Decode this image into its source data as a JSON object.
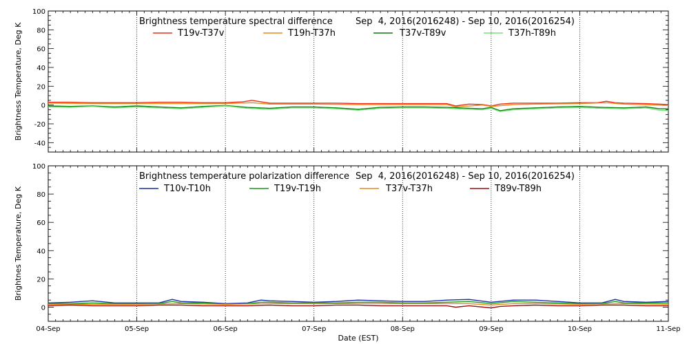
{
  "chart_data": [
    {
      "type": "line",
      "title_left": "Brightness temperature spectral difference",
      "title_right": "Sep  4, 2016(2016248) - Sep 10, 2016(2016254)",
      "ylabel": "Brightness Temperature, Deg K",
      "ylim": [
        -50,
        100
      ],
      "yticks": [
        -40,
        -20,
        0,
        20,
        40,
        60,
        80,
        100
      ],
      "xlim": [
        0,
        7
      ],
      "x_unit": "days since 04-Sep",
      "grid": "vertical dotted at day boundaries",
      "series": [
        {
          "name": "T19v-T37v",
          "color": "#e8301c",
          "x": [
            0,
            0.25,
            0.5,
            0.75,
            1,
            1.25,
            1.5,
            1.75,
            2,
            2.1,
            2.2,
            2.3,
            2.4,
            2.5,
            2.75,
            3,
            3.25,
            3.5,
            3.75,
            4,
            4.25,
            4.5,
            4.6,
            4.75,
            4.9,
            5,
            5.1,
            5.25,
            5.5,
            5.75,
            6,
            6.2,
            6.3,
            6.4,
            6.5,
            6.75,
            7
          ],
          "values": [
            3,
            3,
            2.5,
            2.5,
            2.5,
            3,
            3,
            2.5,
            2.5,
            3,
            3.5,
            5,
            3.5,
            2,
            2,
            2,
            2,
            1.5,
            1.5,
            1.5,
            1.5,
            1.5,
            -1,
            1,
            0.5,
            -1,
            1,
            2,
            2,
            2,
            2.5,
            2.5,
            4,
            2.5,
            2,
            1.5,
            0.5
          ]
        },
        {
          "name": "T19h-T37h",
          "color": "#e88a1c",
          "x": [
            0,
            0.5,
            1,
            1.5,
            2,
            2.3,
            2.5,
            3,
            3.5,
            4,
            4.5,
            4.6,
            4.9,
            5,
            5.25,
            5.5,
            6,
            6.3,
            6.5,
            7
          ],
          "values": [
            2,
            1.5,
            1.5,
            1.5,
            1.5,
            2.5,
            1,
            1,
            0.5,
            0.5,
            0.5,
            -2,
            0,
            -1.5,
            0.5,
            1,
            1.5,
            2.5,
            1,
            -0.5
          ]
        },
        {
          "name": "T37v-T89v",
          "color": "#0a7a0a",
          "x": [
            0,
            0.25,
            0.5,
            0.75,
            1,
            1.25,
            1.5,
            1.75,
            2,
            2.25,
            2.5,
            2.75,
            3,
            3.25,
            3.5,
            3.75,
            4,
            4.25,
            4.5,
            4.75,
            4.9,
            5,
            5.1,
            5.25,
            5.5,
            5.75,
            6,
            6.25,
            6.5,
            6.75,
            6.9,
            7
          ],
          "values": [
            -1,
            -1.5,
            -1,
            -2,
            -1,
            -2,
            -3,
            -1.5,
            -0.5,
            -2.5,
            -3.5,
            -2,
            -2,
            -3,
            -4.5,
            -2.5,
            -2,
            -2,
            -2.5,
            -3.5,
            -4,
            -2.5,
            -6,
            -4,
            -3,
            -2,
            -1.5,
            -2.5,
            -3,
            -2,
            -4,
            -4
          ]
        },
        {
          "name": "T37h-T89h",
          "color": "#76e07a",
          "x": [
            0,
            0.25,
            0.5,
            0.75,
            1,
            1.25,
            1.5,
            1.75,
            2,
            2.25,
            2.5,
            2.75,
            3,
            3.25,
            3.5,
            3.75,
            4,
            4.25,
            4.5,
            4.75,
            4.9,
            5,
            5.1,
            5.25,
            5.5,
            5.75,
            6,
            6.25,
            6.5,
            6.75,
            6.9,
            7
          ],
          "values": [
            -2,
            -2.5,
            -1.5,
            -3,
            -2,
            -3,
            -4,
            -2.5,
            -1,
            -3.5,
            -4.5,
            -3,
            -3,
            -4,
            -5.5,
            -3.5,
            -3,
            -3,
            -3.5,
            -4.5,
            -5,
            -3.5,
            -7,
            -5,
            -4,
            -3,
            -2.5,
            -3.5,
            -4,
            -3,
            -5.5,
            -6
          ]
        }
      ]
    },
    {
      "type": "line",
      "title_left": "Brightness temperature polarization difference",
      "title_right": "Sep  4, 2016(2016248) - Sep 10, 2016(2016254)",
      "ylabel": "Brightnes Temperature, Deg K",
      "xlabel": "Date (EST)",
      "ylim": [
        -10,
        100
      ],
      "yticks": [
        0,
        20,
        40,
        60,
        80,
        100
      ],
      "xlim": [
        0,
        7
      ],
      "xticks": [
        "04-Sep",
        "05-Sep",
        "06-Sep",
        "07-Sep",
        "08-Sep",
        "09-Sep",
        "10-Sep",
        "11-Sep"
      ],
      "grid": "vertical dotted at day boundaries",
      "series": [
        {
          "name": "T10v-T10h",
          "color": "#1c2aa8",
          "x": [
            0,
            0.25,
            0.5,
            0.75,
            1,
            1.25,
            1.4,
            1.5,
            1.75,
            2,
            2.25,
            2.4,
            2.5,
            2.75,
            3,
            3.25,
            3.5,
            3.75,
            4,
            4.25,
            4.5,
            4.75,
            5,
            5.25,
            5.5,
            5.75,
            6,
            6.25,
            6.4,
            6.5,
            6.75,
            7
          ],
          "values": [
            3,
            3.5,
            4.5,
            3,
            3,
            3,
            5.5,
            4,
            3.5,
            2.5,
            3,
            5,
            4.5,
            4,
            3.5,
            4,
            5,
            4.5,
            4,
            4,
            5,
            5.5,
            3.5,
            5,
            5,
            4,
            3,
            3,
            5.5,
            4,
            3.5,
            4
          ]
        },
        {
          "name": "T19v-T19h",
          "color": "#1a9a1a",
          "x": [
            0,
            0.25,
            0.5,
            0.75,
            1,
            1.25,
            1.4,
            1.5,
            1.75,
            2,
            2.25,
            2.4,
            2.5,
            2.75,
            3,
            3.25,
            3.5,
            3.75,
            4,
            4.25,
            4.5,
            4.75,
            5,
            5.25,
            5.5,
            5.75,
            6,
            6.25,
            6.4,
            6.5,
            6.75,
            7
          ],
          "values": [
            2.5,
            2.5,
            3,
            2.5,
            2.5,
            2.5,
            4,
            3,
            3,
            2,
            2.5,
            3.5,
            3.5,
            3,
            3,
            3,
            3.5,
            3.5,
            3,
            3,
            3.5,
            4,
            2.5,
            4,
            3.5,
            3,
            2.5,
            2.5,
            4,
            3,
            3,
            3
          ]
        },
        {
          "name": "T37v-T37h",
          "color": "#e88a1c",
          "x": [
            0,
            0.5,
            1,
            1.5,
            2,
            2.5,
            3,
            3.5,
            4,
            4.5,
            4.75,
            5,
            5.25,
            5.5,
            6,
            6.5,
            7
          ],
          "values": [
            2,
            2,
            2,
            2.5,
            2,
            2.5,
            2.5,
            2.5,
            2.5,
            2.5,
            2.5,
            1.5,
            2.5,
            2.5,
            2,
            2.5,
            2
          ]
        },
        {
          "name": "T89v-T89h",
          "color": "#a01010",
          "x": [
            0,
            0.25,
            0.5,
            0.75,
            1,
            1.25,
            1.5,
            1.75,
            2,
            2.25,
            2.5,
            2.75,
            3,
            3.25,
            3.5,
            3.75,
            4,
            4.25,
            4.5,
            4.6,
            4.75,
            5,
            5.1,
            5.25,
            5.5,
            5.75,
            6,
            6.25,
            6.5,
            6.75,
            7
          ],
          "values": [
            1,
            1.5,
            1,
            1,
            1,
            1.5,
            1.5,
            1,
            1,
            1,
            1.5,
            1,
            1,
            1.5,
            1.5,
            1,
            1,
            1,
            1,
            0,
            1,
            -0.5,
            0.5,
            1,
            1.5,
            1,
            1,
            1.5,
            1.5,
            1,
            1
          ]
        }
      ]
    }
  ]
}
